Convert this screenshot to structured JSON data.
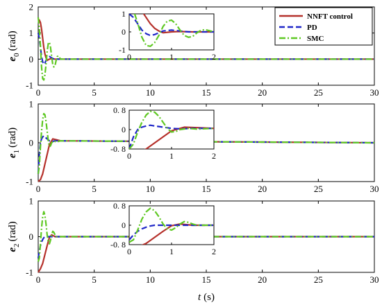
{
  "chart_data": [
    {
      "type": "line",
      "ylabel": {
        "sym": "e",
        "sub": "0",
        "unit": "(rad)"
      },
      "xlim": [
        0,
        30
      ],
      "ylim": [
        -1,
        2
      ],
      "xticks": [
        0,
        5,
        10,
        15,
        20,
        25,
        30
      ],
      "yticks": [
        -1,
        0,
        1,
        2
      ],
      "series": [
        {
          "name": "NNFT control",
          "color": "#b5302a",
          "dash": "solid",
          "x": [
            0,
            0.1,
            0.2,
            0.3,
            0.4,
            0.5,
            0.6,
            0.7,
            0.8,
            1.0,
            1.2,
            1.5,
            2,
            30
          ],
          "y": [
            1.5,
            1.5,
            1.4,
            1.15,
            0.8,
            0.45,
            0.2,
            0.05,
            -0.05,
            0.0,
            0.02,
            0.0,
            0.0,
            0.0
          ]
        },
        {
          "name": "PD",
          "color": "#1e26c8",
          "dash": "dashed",
          "x": [
            0,
            0.1,
            0.2,
            0.3,
            0.4,
            0.5,
            0.6,
            0.7,
            0.8,
            1.0,
            1.2,
            1.4,
            1.6,
            2,
            30
          ],
          "y": [
            1.0,
            0.8,
            0.45,
            0.1,
            -0.1,
            -0.2,
            -0.15,
            -0.05,
            0.05,
            0.1,
            0.05,
            0.0,
            0.0,
            0.0,
            0.0
          ]
        },
        {
          "name": "SMC",
          "color": "#5ec822",
          "dash": "dashdot",
          "x": [
            0,
            0.1,
            0.2,
            0.3,
            0.4,
            0.5,
            0.6,
            0.7,
            0.8,
            0.9,
            1.0,
            1.1,
            1.2,
            1.3,
            1.4,
            1.5,
            1.6,
            1.7,
            1.8,
            2,
            30
          ],
          "y": [
            1.6,
            1.2,
            0.5,
            -0.3,
            -0.75,
            -0.8,
            -0.6,
            -0.2,
            0.3,
            0.6,
            0.65,
            0.45,
            0.1,
            -0.2,
            -0.3,
            -0.25,
            -0.05,
            0.1,
            0.12,
            0.0,
            0.0
          ]
        }
      ],
      "inset": {
        "xlim": [
          0,
          2
        ],
        "ylim": [
          -1,
          1
        ],
        "xticks": [
          0,
          1,
          2
        ],
        "yticks": [
          -1,
          0,
          1
        ],
        "ytick_labels": [
          "-1",
          "0",
          "1"
        ]
      }
    },
    {
      "type": "line",
      "ylabel": {
        "sym": "e",
        "sub": "1",
        "unit": "(rad)"
      },
      "xlim": [
        0,
        30
      ],
      "ylim": [
        -1,
        1
      ],
      "xticks": [
        0,
        5,
        10,
        15,
        20,
        25,
        30
      ],
      "yticks": [
        -1,
        0,
        1
      ],
      "series": [
        {
          "name": "NNFT control",
          "color": "#b5302a",
          "dash": "solid",
          "x": [
            0,
            0.2,
            0.4,
            0.6,
            0.8,
            1.0,
            1.1,
            1.3,
            1.6,
            2,
            30
          ],
          "y": [
            -1.0,
            -0.95,
            -0.8,
            -0.55,
            -0.3,
            -0.05,
            0.0,
            0.1,
            0.08,
            0.05,
            0.0
          ]
        },
        {
          "name": "PD",
          "color": "#1e26c8",
          "dash": "dashed",
          "x": [
            0,
            0.1,
            0.2,
            0.3,
            0.4,
            0.5,
            0.6,
            0.8,
            1.0,
            1.2,
            1.5,
            2,
            30
          ],
          "y": [
            -0.8,
            -0.3,
            0.0,
            0.1,
            0.15,
            0.18,
            0.15,
            0.1,
            0.05,
            0.03,
            0.05,
            0.05,
            0.0
          ]
        },
        {
          "name": "SMC",
          "color": "#5ec822",
          "dash": "dashdot",
          "x": [
            0,
            0.1,
            0.2,
            0.3,
            0.4,
            0.5,
            0.6,
            0.7,
            0.8,
            0.9,
            1.0,
            1.1,
            1.2,
            1.4,
            1.6,
            2,
            30
          ],
          "y": [
            -0.8,
            -0.6,
            -0.1,
            0.3,
            0.6,
            0.75,
            0.72,
            0.55,
            0.3,
            0.05,
            -0.1,
            -0.08,
            0.0,
            0.05,
            0.02,
            0.05,
            0.0
          ]
        }
      ],
      "inset": {
        "xlim": [
          0,
          2
        ],
        "ylim": [
          -0.8,
          0.8
        ],
        "xticks": [
          0,
          1,
          2
        ],
        "yticks": [
          -0.8,
          0,
          0.8
        ],
        "ytick_labels": [
          "-0. 8",
          "0",
          "0. 8"
        ]
      }
    },
    {
      "type": "line",
      "ylabel": {
        "sym": "e",
        "sub": "2",
        "unit": "(rad)"
      },
      "xlabel": {
        "sym": "t",
        "unit": "(s)"
      },
      "xlim": [
        0,
        30
      ],
      "ylim": [
        -1,
        1
      ],
      "xticks": [
        0,
        5,
        10,
        15,
        20,
        25,
        30
      ],
      "yticks": [
        -1,
        0,
        1
      ],
      "series": [
        {
          "name": "NNFT control",
          "color": "#b5302a",
          "dash": "solid",
          "x": [
            0,
            0.2,
            0.4,
            0.6,
            0.8,
            1.0,
            1.2,
            1.5,
            2,
            30
          ],
          "y": [
            -1.0,
            -0.9,
            -0.75,
            -0.5,
            -0.25,
            -0.02,
            0.05,
            0.0,
            0.0,
            0.0
          ]
        },
        {
          "name": "PD",
          "color": "#1e26c8",
          "dash": "dashed",
          "x": [
            0,
            0.1,
            0.2,
            0.3,
            0.4,
            0.5,
            0.6,
            0.7,
            0.9,
            1.2,
            2,
            30
          ],
          "y": [
            -0.6,
            -0.4,
            -0.25,
            -0.15,
            -0.08,
            -0.03,
            0.0,
            0.0,
            0.0,
            0.0,
            0.0,
            0.0
          ]
        },
        {
          "name": "SMC",
          "color": "#5ec822",
          "dash": "dashdot",
          "x": [
            0,
            0.1,
            0.2,
            0.3,
            0.4,
            0.5,
            0.6,
            0.7,
            0.8,
            0.9,
            1.0,
            1.1,
            1.2,
            1.3,
            1.4,
            1.5,
            1.6,
            1.8,
            2,
            30
          ],
          "y": [
            -0.7,
            -0.6,
            -0.2,
            0.25,
            0.55,
            0.7,
            0.6,
            0.35,
            0.05,
            -0.15,
            -0.2,
            -0.1,
            0.05,
            0.15,
            0.12,
            0.05,
            0.0,
            0.0,
            0.0,
            0.0
          ]
        }
      ],
      "inset": {
        "xlim": [
          0,
          2
        ],
        "ylim": [
          -0.8,
          0.8
        ],
        "xticks": [
          0,
          1,
          2
        ],
        "yticks": [
          -0.8,
          0,
          0.8
        ],
        "ytick_labels": [
          "-0. 8",
          "0",
          "0. 8"
        ]
      }
    }
  ],
  "legend": {
    "placement": "top-right",
    "entries": [
      "NNFT control",
      "PD",
      "SMC"
    ]
  }
}
